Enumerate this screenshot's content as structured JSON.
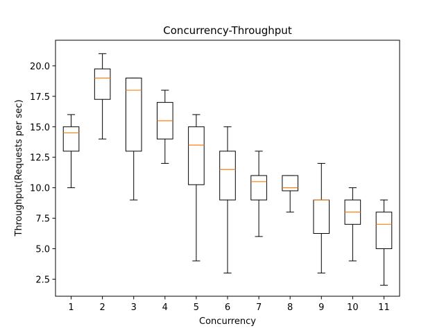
{
  "chart_data": {
    "type": "boxplot",
    "title": "Concurrency-Throughput",
    "xlabel": "Concurrency",
    "ylabel": "Throughput(Requests per sec)",
    "ylim": [
      1.1,
      22.1
    ],
    "yticks": [
      2.5,
      5.0,
      7.5,
      10.0,
      12.5,
      15.0,
      17.5,
      20.0
    ],
    "ytick_labels": [
      "2.5",
      "5.0",
      "7.5",
      "10.0",
      "12.5",
      "15.0",
      "17.5",
      "20.0"
    ],
    "categories": [
      "1",
      "2",
      "3",
      "4",
      "5",
      "6",
      "7",
      "8",
      "9",
      "10",
      "11"
    ],
    "boxes": [
      {
        "min": 10,
        "q1": 13,
        "median": 14.5,
        "q3": 15,
        "max": 16
      },
      {
        "min": 14,
        "q1": 17.25,
        "median": 19,
        "q3": 19.75,
        "max": 21
      },
      {
        "min": 9,
        "q1": 13,
        "median": 18,
        "q3": 19,
        "max": 19
      },
      {
        "min": 12,
        "q1": 14,
        "median": 15.5,
        "q3": 17,
        "max": 18
      },
      {
        "min": 4,
        "q1": 10.25,
        "median": 13.5,
        "q3": 15,
        "max": 16
      },
      {
        "min": 3,
        "q1": 9,
        "median": 11.5,
        "q3": 13,
        "max": 15
      },
      {
        "min": 6,
        "q1": 9,
        "median": 10.5,
        "q3": 11,
        "max": 13
      },
      {
        "min": 8,
        "q1": 9.75,
        "median": 10,
        "q3": 11,
        "max": 11
      },
      {
        "min": 3,
        "q1": 6.25,
        "median": 9,
        "q3": 9,
        "max": 12
      },
      {
        "min": 4,
        "q1": 7,
        "median": 8,
        "q3": 9,
        "max": 10
      },
      {
        "min": 2,
        "q1": 5,
        "median": 7,
        "q3": 8,
        "max": 9
      }
    ],
    "grid": false,
    "colors": {
      "box": "#000000",
      "median": "#ff7f0e",
      "axis": "#000000"
    }
  }
}
